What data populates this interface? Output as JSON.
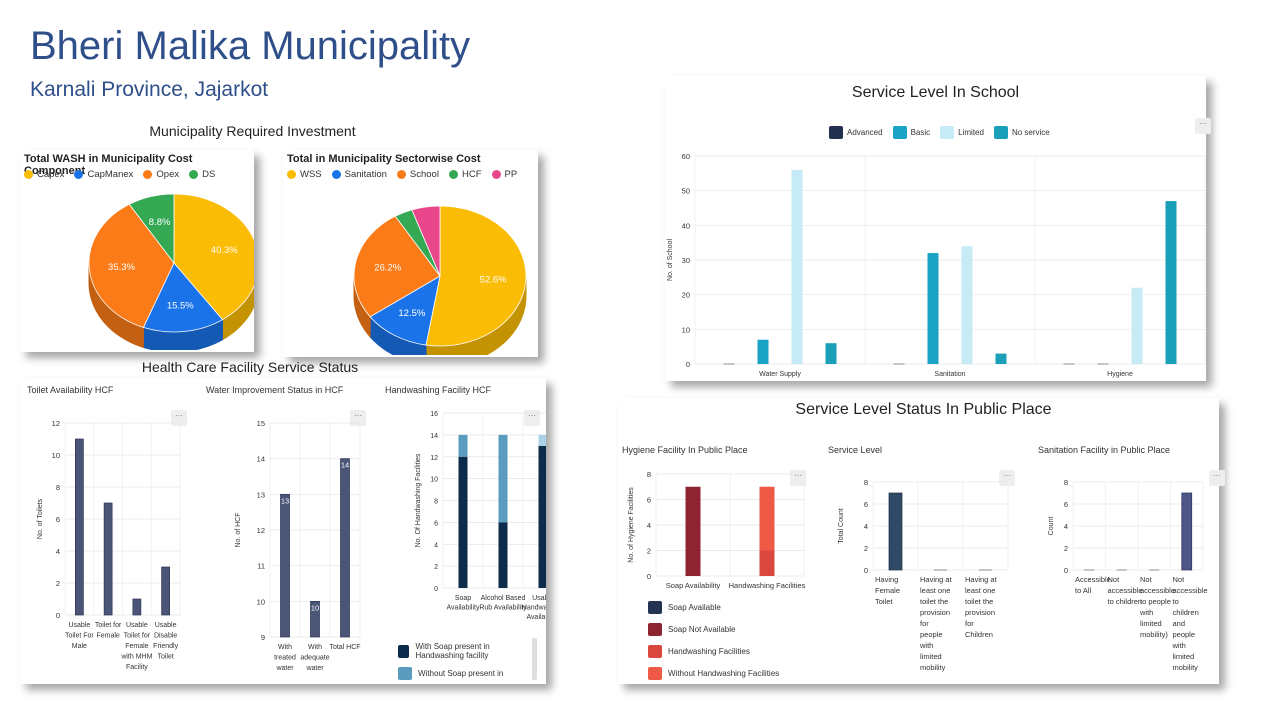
{
  "page": {
    "title": "Bheri Malika Municipality",
    "subtitle": "Karnali Province, Jajarkot",
    "investment_heading": "Municipality Required Investment",
    "health_heading": "Health Care Facility Service Status"
  },
  "colors": {
    "heading": "#2f4f8a"
  },
  "chart_data": [
    {
      "id": "pie1",
      "type": "pie",
      "title": "Total WASH in Municipality Cost Component",
      "categories": [
        "Capex",
        "CapManex",
        "Opex",
        "DS"
      ],
      "values": [
        40.3,
        15.5,
        35.3,
        8.8
      ],
      "labels": [
        "40.3%",
        "15.5%",
        "35.3%",
        "8.8%"
      ],
      "colors": [
        "#fbbc05",
        "#1a73e8",
        "#fa7b17",
        "#34a853"
      ],
      "legend": "top"
    },
    {
      "id": "pie2",
      "type": "pie",
      "title": "Total in Municipality Sectorwise Cost",
      "categories": [
        "WSS",
        "Sanitation",
        "School",
        "HCF",
        "PP"
      ],
      "values": [
        52.6,
        12.5,
        26.2,
        3.4,
        5.3
      ],
      "labels": [
        "52.6%",
        "12.5%",
        "26.2%",
        "",
        ""
      ],
      "colors": [
        "#fbbc05",
        "#1a73e8",
        "#fa7b17",
        "#34a853",
        "#e8488b"
      ],
      "legend": "top"
    },
    {
      "id": "toilet",
      "type": "bar",
      "title": "Toilet Availability HCF",
      "ylabel": "No. of Toilets",
      "ylim": [
        0,
        12
      ],
      "yticks": [
        0,
        2,
        4,
        6,
        8,
        10,
        12
      ],
      "categories": [
        "Usable Toilet For Male",
        "Toilet for Female",
        "Usable Toilet for Female with MHM Facility",
        "Usable Disable Friendly Toilet"
      ],
      "category_lines": [
        [
          "Usable",
          "Toilet For",
          "Male"
        ],
        [
          "Toilet for",
          "Female"
        ],
        [
          "Usable",
          "Toilet for",
          "Female",
          "with MHM",
          "Facility"
        ],
        [
          "Usable",
          "Disable",
          "Friendly",
          "Toilet"
        ]
      ],
      "values": [
        11,
        7,
        1,
        3
      ],
      "color": "#4a5578"
    },
    {
      "id": "water",
      "type": "bar",
      "title": "Water Improvement Status in HCF",
      "ylabel": "No. of HCF",
      "ylim": [
        9,
        15
      ],
      "yticks": [
        9,
        10,
        11,
        12,
        13,
        14,
        15
      ],
      "categories": [
        "With treated water",
        "With adequate water",
        "Total HCF"
      ],
      "category_lines": [
        [
          "With",
          "treated",
          "water"
        ],
        [
          "With",
          "adequate",
          "water"
        ],
        [
          "Total HCF"
        ]
      ],
      "values": [
        13,
        10,
        14
      ],
      "data_labels": [
        "13",
        "10",
        "14"
      ],
      "color": "#4a5578"
    },
    {
      "id": "handwash",
      "type": "bar",
      "stacked": true,
      "title": "Handwashing Facility HCF",
      "ylabel": "No. Of Handwashing Facilities",
      "ylim": [
        0,
        16
      ],
      "yticks": [
        0,
        2,
        4,
        6,
        8,
        10,
        12,
        14,
        16
      ],
      "categories": [
        "Soap Availability",
        "Alcohol Based Rub Availability",
        "Usable Handwashing Availability"
      ],
      "category_lines": [
        [
          "Soap",
          "Availability"
        ],
        [
          "Alcohol Based",
          "Rub Availability"
        ],
        [
          "Usable",
          "Handwashing",
          "Availability"
        ]
      ],
      "series": [
        {
          "name": "With Soap present in Handwashing facility",
          "values": [
            12,
            6,
            13
          ],
          "color": "#0d2b4a"
        },
        {
          "name": "Without Soap present in",
          "values": [
            2,
            8,
            1
          ],
          "color": "#5b9bbd"
        }
      ],
      "colors_alt": [
        "#5b9bbd",
        "#5b9bbd",
        "#a9d2e8"
      ]
    },
    {
      "id": "school",
      "type": "bar",
      "title": "Service Level In School",
      "ylabel": "No. of School",
      "ylim": [
        0,
        60
      ],
      "yticks": [
        0,
        10,
        20,
        30,
        40,
        50,
        60
      ],
      "categories": [
        "Water Supply",
        "Sanitation",
        "Hygiene"
      ],
      "series": [
        {
          "name": "Advanced",
          "values": [
            0,
            0,
            0
          ],
          "color": "#23304f"
        },
        {
          "name": "Basic",
          "values": [
            7,
            32,
            0
          ],
          "color": "#1aa3c4"
        },
        {
          "name": "Limited",
          "values": [
            56,
            34,
            22
          ],
          "color": "#c6ebf6"
        },
        {
          "name": "No service",
          "values": [
            6,
            3,
            47
          ],
          "color": "#1a9fb8"
        }
      ],
      "legend": "top"
    },
    {
      "id": "hygiene_pp",
      "type": "bar",
      "stacked": true,
      "title": "Hygiene Facility In Public Place",
      "ylabel": "No. of Hygiene Facilities",
      "ylim": [
        0,
        8
      ],
      "yticks": [
        0,
        2,
        4,
        6,
        8
      ],
      "categories": [
        "Soap Availability",
        "Handwashing Facilities"
      ],
      "series": [
        {
          "name": "Soap Available",
          "values": [
            0,
            0
          ],
          "color": "#243352"
        },
        {
          "name": "Soap Not Available",
          "values": [
            7,
            0
          ],
          "color": "#8e2430"
        },
        {
          "name": "Handwashing Facilities",
          "values": [
            0,
            2
          ],
          "color": "#d9473e"
        },
        {
          "name": "Without Handwashing Facilities",
          "values": [
            0,
            5
          ],
          "color": "#ef5a47"
        }
      ]
    },
    {
      "id": "service_level_pp",
      "type": "bar",
      "title": "Service Level",
      "ylabel": "Total Count",
      "ylim": [
        0,
        8
      ],
      "yticks": [
        0,
        2,
        4,
        6,
        8
      ],
      "categories": [
        "Having Female Toilet",
        "Having at least one toilet the provision for people with limited mobility",
        "Having at least one toilet the provision for Children"
      ],
      "category_lines": [
        [
          "Having",
          "Female",
          "Toilet"
        ],
        [
          "Having at",
          "least one",
          "toilet the",
          "provision",
          "for",
          "people",
          "with",
          "limited",
          "mobility"
        ],
        [
          "Having at",
          "least one",
          "toilet the",
          "provision",
          "for",
          "Children"
        ]
      ],
      "values": [
        7,
        0,
        0
      ],
      "color": "#2f4a66"
    },
    {
      "id": "sanitation_pp",
      "type": "bar",
      "title": "Sanitation Facility in Public Place",
      "ylabel": "Count",
      "ylim": [
        0,
        8
      ],
      "yticks": [
        0,
        2,
        4,
        6,
        8
      ],
      "categories": [
        "Accessible to All",
        "Not accessible to children",
        "Not accessible to people with limited mobility",
        "Not accessible to children and people with limited mobility"
      ],
      "category_lines": [
        [
          "Accessible",
          "to All"
        ],
        [
          "Not",
          "accessible",
          "to children"
        ],
        [
          "Not",
          "accessible",
          "to people",
          "with",
          "limited",
          "mobility)"
        ],
        [
          "Not",
          "accessible",
          "to",
          "children",
          "and",
          "people",
          "with",
          "limited",
          "mobility"
        ]
      ],
      "values": [
        0,
        0,
        0,
        7
      ],
      "color": "#4d5589"
    }
  ],
  "public_place_heading": "Service Level Status In Public Place",
  "menu_glyph": "···"
}
